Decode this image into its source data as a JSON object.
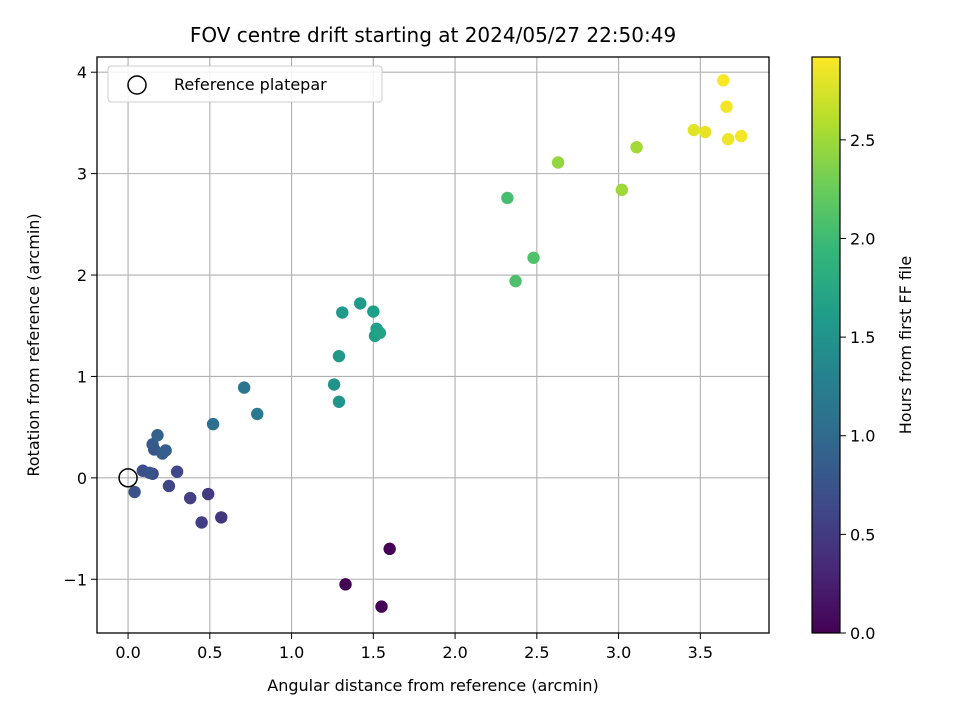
{
  "chart_data": {
    "type": "scatter",
    "title": "FOV centre drift starting at 2024/05/27 22:50:49",
    "xlabel": "Angular distance from reference (arcmin)",
    "ylabel": "Rotation from reference (arcmin)",
    "xlim": [
      -0.19,
      3.92
    ],
    "ylim": [
      -1.53,
      4.15
    ],
    "xticks": [
      0.0,
      0.5,
      1.0,
      1.5,
      2.0,
      2.5,
      3.0,
      3.5
    ],
    "xtick_labels": [
      "0.0",
      "0.5",
      "1.0",
      "1.5",
      "2.0",
      "2.5",
      "3.0",
      "3.5"
    ],
    "yticks": [
      -1,
      0,
      1,
      2,
      3,
      4
    ],
    "ytick_labels": [
      "−1",
      "0",
      "1",
      "2",
      "3",
      "4"
    ],
    "grid": true,
    "colorbar": {
      "label": "Hours from first FF file",
      "colormap": "viridis",
      "range": [
        0.0,
        2.92
      ],
      "ticks": [
        0.0,
        0.5,
        1.0,
        1.5,
        2.0,
        2.5
      ],
      "tick_labels": [
        "0.0",
        "0.5",
        "1.0",
        "1.5",
        "2.0",
        "2.5"
      ]
    },
    "legend": {
      "placement": "upper-left",
      "entries": [
        {
          "label": "Reference platepar",
          "marker": "open-circle"
        }
      ]
    },
    "reference_point": {
      "x": 0.0,
      "y": 0.0
    },
    "points": [
      {
        "x": 1.33,
        "y": -1.05,
        "hours": 0.0
      },
      {
        "x": 1.6,
        "y": -0.7,
        "hours": 0.02
      },
      {
        "x": 1.55,
        "y": -1.27,
        "hours": 0.03
      },
      {
        "x": 0.57,
        "y": -0.39,
        "hours": 0.45
      },
      {
        "x": 0.49,
        "y": -0.16,
        "hours": 0.5
      },
      {
        "x": 0.45,
        "y": -0.44,
        "hours": 0.53
      },
      {
        "x": 0.38,
        "y": -0.2,
        "hours": 0.56
      },
      {
        "x": 0.25,
        "y": -0.08,
        "hours": 0.6
      },
      {
        "x": 0.3,
        "y": 0.06,
        "hours": 0.63
      },
      {
        "x": 0.15,
        "y": 0.04,
        "hours": 0.66
      },
      {
        "x": 0.09,
        "y": 0.07,
        "hours": 0.7
      },
      {
        "x": 0.04,
        "y": -0.14,
        "hours": 0.72
      },
      {
        "x": 0.13,
        "y": 0.05,
        "hours": 0.75
      },
      {
        "x": 0.16,
        "y": 0.28,
        "hours": 0.78
      },
      {
        "x": 0.15,
        "y": 0.33,
        "hours": 0.82
      },
      {
        "x": 0.21,
        "y": 0.24,
        "hours": 0.85
      },
      {
        "x": 0.23,
        "y": 0.27,
        "hours": 0.88
      },
      {
        "x": 0.18,
        "y": 0.42,
        "hours": 0.92
      },
      {
        "x": 0.52,
        "y": 0.53,
        "hours": 1.05
      },
      {
        "x": 0.71,
        "y": 0.89,
        "hours": 1.15
      },
      {
        "x": 0.79,
        "y": 0.63,
        "hours": 1.2
      },
      {
        "x": 1.26,
        "y": 0.92,
        "hours": 1.5
      },
      {
        "x": 1.29,
        "y": 0.75,
        "hours": 1.52
      },
      {
        "x": 1.29,
        "y": 1.2,
        "hours": 1.55
      },
      {
        "x": 1.31,
        "y": 1.63,
        "hours": 1.58
      },
      {
        "x": 1.42,
        "y": 1.72,
        "hours": 1.6
      },
      {
        "x": 1.5,
        "y": 1.64,
        "hours": 1.62
      },
      {
        "x": 1.52,
        "y": 1.47,
        "hours": 1.63
      },
      {
        "x": 1.51,
        "y": 1.4,
        "hours": 1.65
      },
      {
        "x": 1.54,
        "y": 1.43,
        "hours": 1.67
      },
      {
        "x": 2.32,
        "y": 2.76,
        "hours": 2.05
      },
      {
        "x": 2.37,
        "y": 1.94,
        "hours": 2.08
      },
      {
        "x": 2.48,
        "y": 2.17,
        "hours": 2.1
      },
      {
        "x": 2.63,
        "y": 3.11,
        "hours": 2.45
      },
      {
        "x": 3.02,
        "y": 2.84,
        "hours": 2.5
      },
      {
        "x": 3.11,
        "y": 3.26,
        "hours": 2.52
      },
      {
        "x": 3.46,
        "y": 3.43,
        "hours": 2.8
      },
      {
        "x": 3.53,
        "y": 3.41,
        "hours": 2.82
      },
      {
        "x": 3.64,
        "y": 3.92,
        "hours": 2.9
      },
      {
        "x": 3.66,
        "y": 3.66,
        "hours": 2.88
      },
      {
        "x": 3.67,
        "y": 3.34,
        "hours": 2.85
      },
      {
        "x": 3.75,
        "y": 3.37,
        "hours": 2.87
      }
    ]
  }
}
